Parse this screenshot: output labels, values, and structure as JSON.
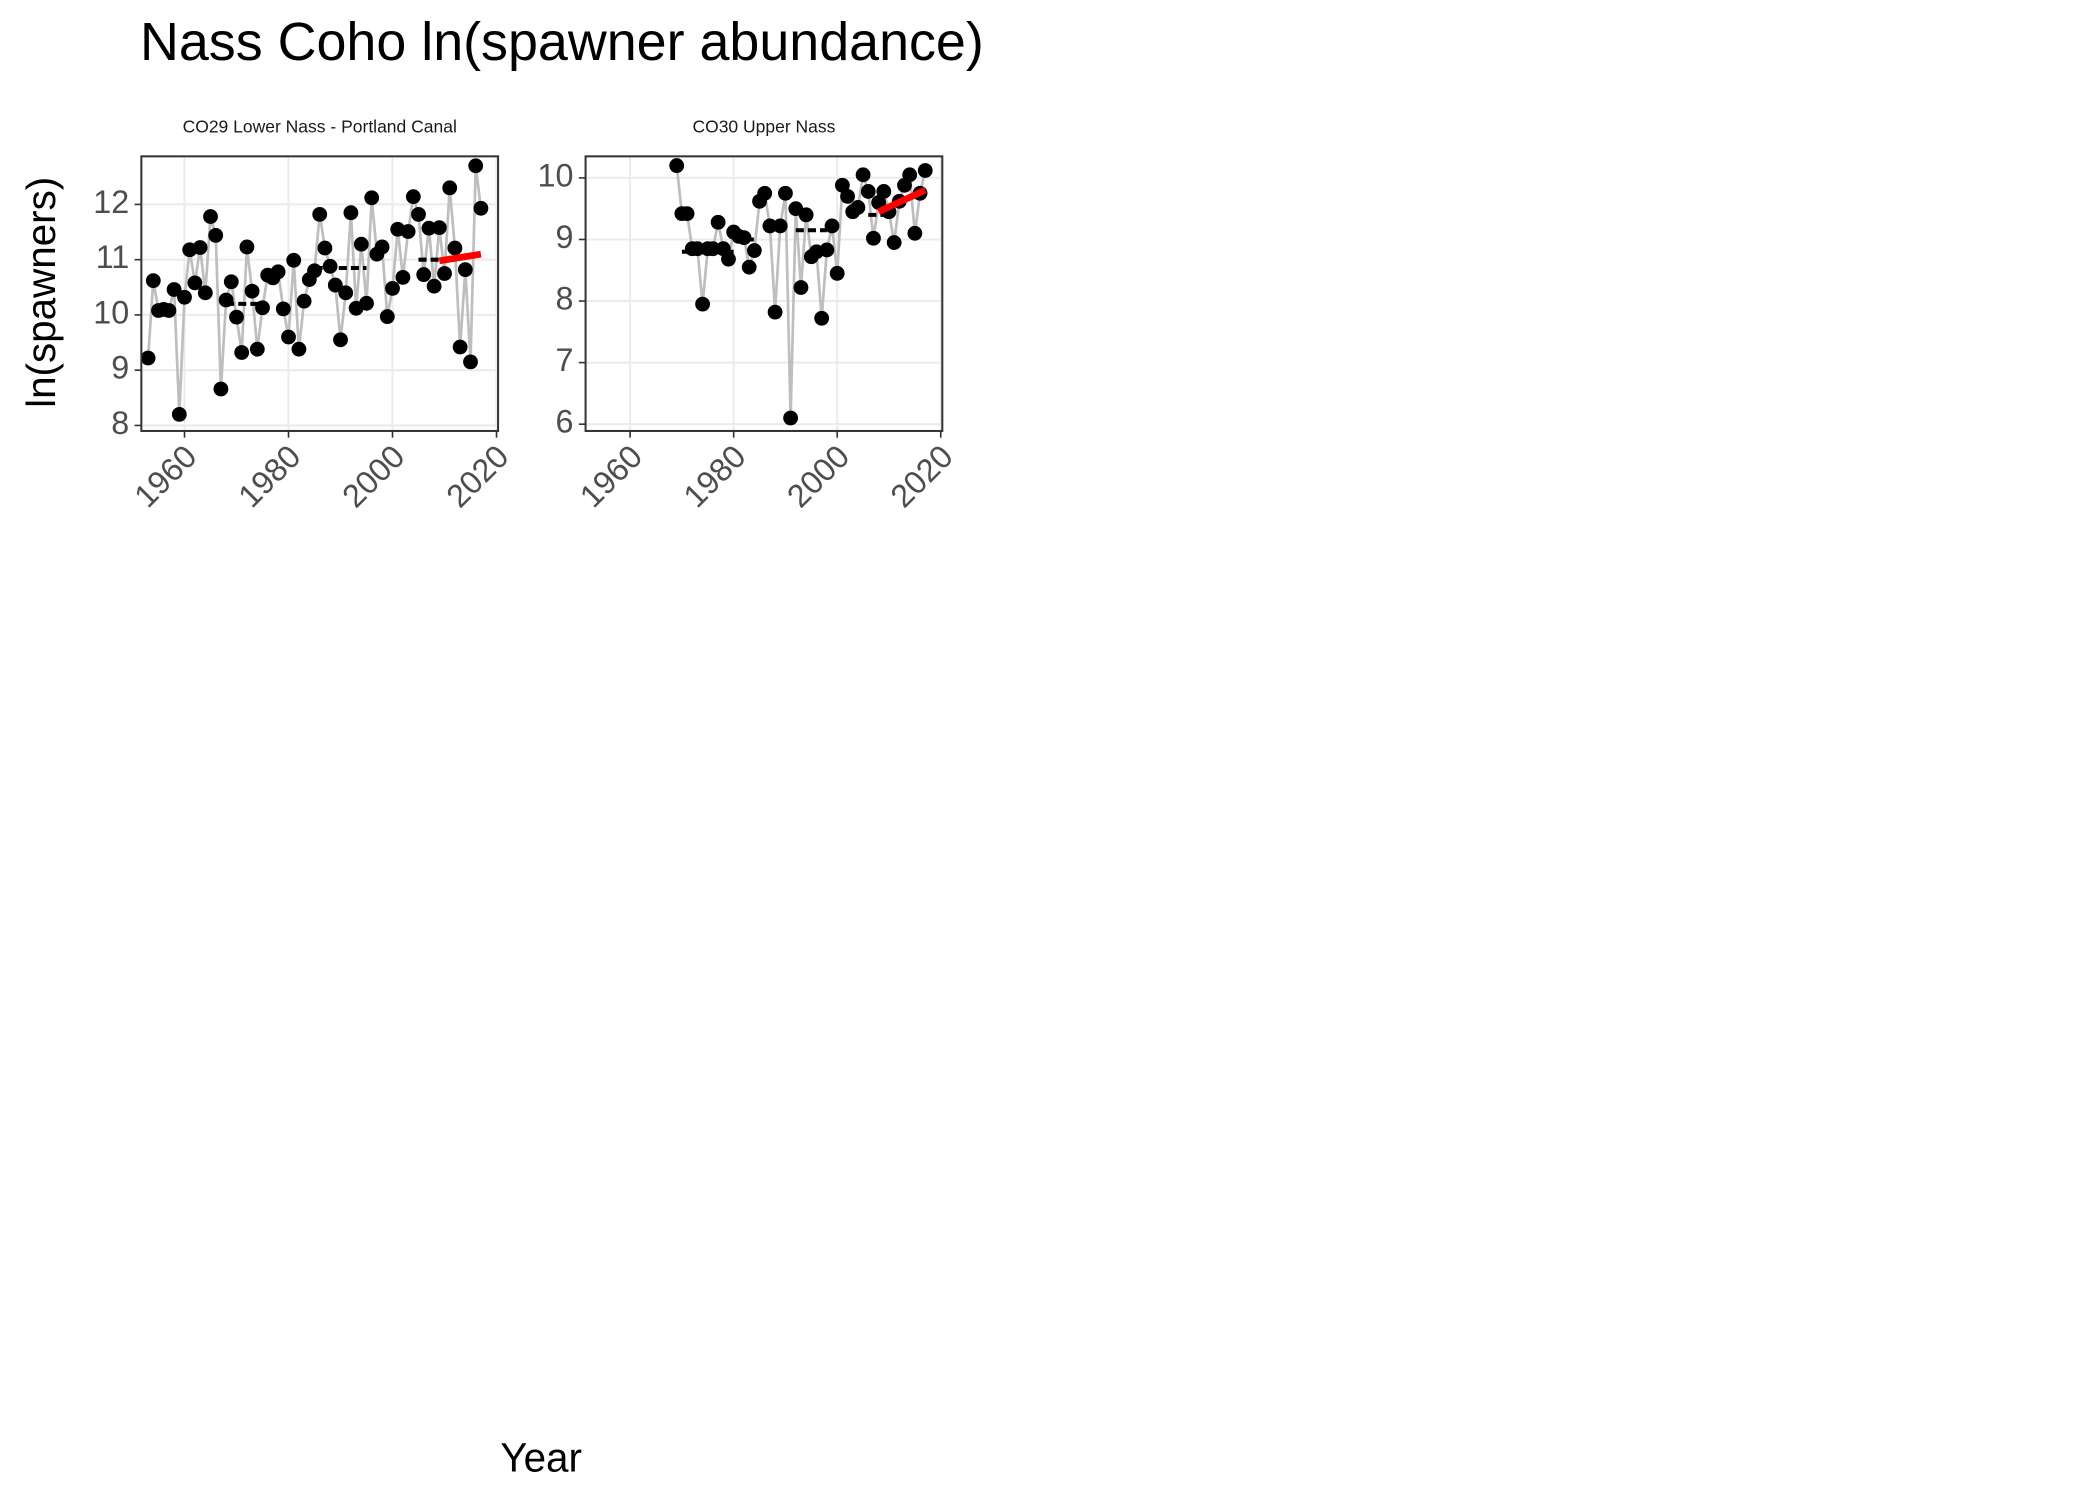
{
  "title": "Nass Coho ln(spawner abundance)",
  "x_label": "Year",
  "y_label": "ln(spawners)",
  "chart_data": [
    {
      "type": "line",
      "title": "CO29 Lower Nass - Portland Canal",
      "x": [
        1953,
        1954,
        1955,
        1956,
        1957,
        1958,
        1959,
        1960,
        1961,
        1962,
        1963,
        1964,
        1965,
        1966,
        1967,
        1968,
        1969,
        1970,
        1971,
        1972,
        1973,
        1974,
        1975,
        1976,
        1977,
        1978,
        1979,
        1980,
        1981,
        1982,
        1983,
        1984,
        1985,
        1986,
        1987,
        1988,
        1989,
        1990,
        1991,
        1992,
        1993,
        1994,
        1995,
        1996,
        1997,
        1998,
        1999,
        2000,
        2001,
        2002,
        2003,
        2004,
        2005,
        2006,
        2007,
        2008,
        2009,
        2010,
        2011,
        2012,
        2013,
        2014,
        2015,
        2016,
        2017
      ],
      "values": [
        9.22,
        10.62,
        10.08,
        10.1,
        10.08,
        10.46,
        8.2,
        10.32,
        11.18,
        10.58,
        11.22,
        10.4,
        11.78,
        11.44,
        8.66,
        10.27,
        10.6,
        9.96,
        9.32,
        11.23,
        10.43,
        9.38,
        10.13,
        10.72,
        10.67,
        10.78,
        10.11,
        9.6,
        10.99,
        9.38,
        10.25,
        10.64,
        10.8,
        11.82,
        11.21,
        10.88,
        10.54,
        9.55,
        10.4,
        11.85,
        10.12,
        11.28,
        10.21,
        12.12,
        11.1,
        11.23,
        9.97,
        10.48,
        11.55,
        10.68,
        11.51,
        12.14,
        11.82,
        10.73,
        11.57,
        10.52,
        11.58,
        10.75,
        12.3,
        11.21,
        9.42,
        10.82,
        9.15,
        12.7,
        11.93
      ],
      "color": "#000000",
      "line_color": "#bebebe",
      "segments": [
        {
          "x": [
            1955,
            1958
          ],
          "value": 10.05
        },
        {
          "x": [
            1968,
            1975
          ],
          "value": 10.2
        },
        {
          "x": [
            1985,
            1995
          ],
          "value": 10.85
        },
        {
          "x": [
            2005,
            2010
          ],
          "value": 11.0
        }
      ],
      "trend": {
        "x": [
          2009,
          2017
        ],
        "values": [
          10.98,
          11.1
        ],
        "color": "#ff0000"
      },
      "xlim": [
        1951.7,
        2020.3
      ],
      "ylim": [
        7.9,
        12.87
      ],
      "xticks": [
        1960,
        1980,
        2000,
        2020
      ],
      "yticks": [
        8,
        9,
        10,
        11,
        12
      ],
      "grid": true
    },
    {
      "type": "line",
      "title": "CO30 Upper Nass",
      "x": [
        1969,
        1970,
        1971,
        1972,
        1973,
        1974,
        1975,
        1976,
        1977,
        1978,
        1979,
        1980,
        1981,
        1982,
        1983,
        1984,
        1985,
        1986,
        1987,
        1988,
        1989,
        1990,
        1991,
        1992,
        1993,
        1994,
        1995,
        1996,
        1997,
        1998,
        1999,
        2000,
        2001,
        2002,
        2003,
        2004,
        2005,
        2006,
        2007,
        2008,
        2009,
        2010,
        2011,
        2012,
        2013,
        2014,
        2015,
        2016,
        2017
      ],
      "values": [
        10.2,
        9.42,
        9.42,
        8.85,
        8.85,
        7.95,
        8.85,
        8.85,
        9.28,
        8.85,
        8.68,
        9.12,
        9.05,
        9.03,
        8.55,
        8.82,
        9.62,
        9.75,
        9.22,
        7.82,
        9.22,
        9.75,
        6.1,
        9.5,
        8.22,
        9.4,
        8.72,
        8.8,
        7.72,
        8.83,
        9.22,
        8.45,
        9.88,
        9.7,
        9.45,
        9.52,
        10.05,
        9.78,
        9.02,
        9.6,
        9.78,
        9.45,
        8.95,
        9.62,
        9.88,
        10.05,
        9.1,
        9.75,
        10.12
      ],
      "color": "#000000",
      "line_color": "#bebebe",
      "segments": [
        {
          "x": [
            1970,
            1980
          ],
          "value": 8.8
        },
        {
          "x": [
            1980,
            1984
          ],
          "value": 9.0
        },
        {
          "x": [
            1992,
            1998
          ],
          "value": 9.15
        },
        {
          "x": [
            2006,
            2010
          ],
          "value": 9.4
        }
      ],
      "trend": {
        "x": [
          2008,
          2017
        ],
        "values": [
          9.45,
          9.8
        ],
        "color": "#ff0000"
      },
      "xlim": [
        1951.4,
        2020.3
      ],
      "ylim": [
        5.89,
        10.35
      ],
      "xticks": [
        1960,
        1980,
        2000,
        2020
      ],
      "yticks": [
        6,
        7,
        8,
        9,
        10
      ],
      "grid": true
    }
  ]
}
